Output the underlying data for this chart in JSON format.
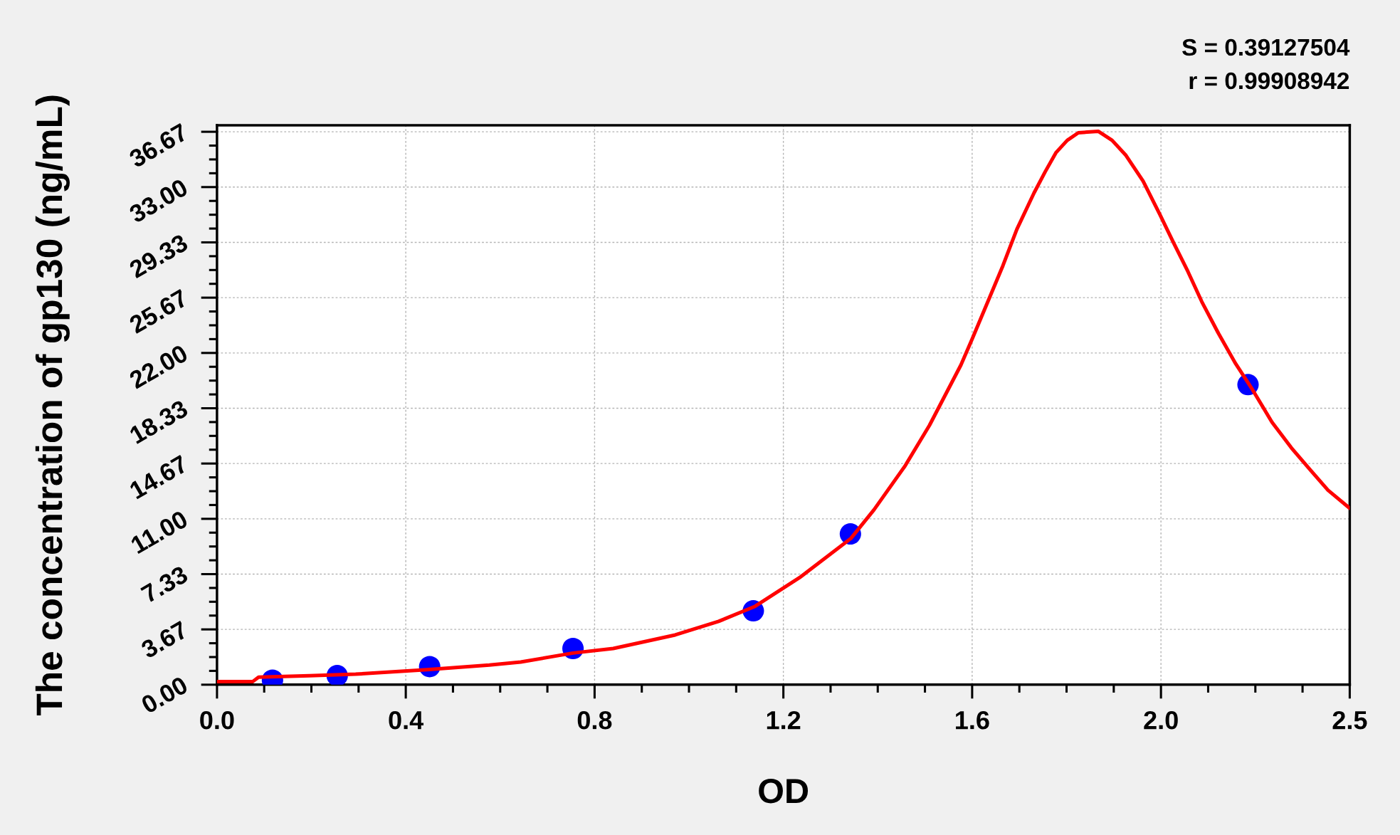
{
  "chart_data": {
    "type": "scatter",
    "xlabel": "OD",
    "ylabel": "The concentration of gp130 (ng/mL)",
    "annotations": [
      "S = 0.39127504",
      "r = 0.99908942"
    ],
    "xlim": [
      0,
      2.45
    ],
    "xticks": [
      {
        "value": 0,
        "label": "0.0"
      },
      {
        "value": 0.4083,
        "label": "0.4"
      },
      {
        "value": 0.8167,
        "label": "0.8"
      },
      {
        "value": 1.225,
        "label": "1.2"
      },
      {
        "value": 1.6333,
        "label": "1.6"
      },
      {
        "value": 2.0417,
        "label": "2.0"
      },
      {
        "value": 2.45,
        "label": "2.5"
      }
    ],
    "ylim": [
      0,
      37.1
    ],
    "yticks": [
      {
        "value": 0,
        "label": "0.00"
      },
      {
        "value": 3.667,
        "label": "3.67"
      },
      {
        "value": 7.333,
        "label": "7.33"
      },
      {
        "value": 11,
        "label": "11.00"
      },
      {
        "value": 14.667,
        "label": "14.67"
      },
      {
        "value": 18.333,
        "label": "18.33"
      },
      {
        "value": 22,
        "label": "22.00"
      },
      {
        "value": 25.667,
        "label": "25.67"
      },
      {
        "value": 29.333,
        "label": "29.33"
      },
      {
        "value": 33,
        "label": "33.00"
      },
      {
        "value": 36.667,
        "label": "36.67"
      }
    ],
    "grid": true,
    "series": [
      {
        "color": "#0000ff",
        "marker": "circle",
        "x": [
          0.12,
          0.26,
          0.46,
          0.77,
          1.16,
          1.37,
          2.23
        ],
        "values": [
          0.3,
          0.6,
          1.2,
          2.4,
          4.9,
          10.0,
          19.9
        ]
      },
      {
        "type": "line",
        "color": "#ff0000",
        "line_style": "solid",
        "x": [
          0,
          0.077,
          0.09,
          0.2,
          0.3,
          0.405,
          0.454,
          0.589,
          0.657,
          0.77,
          0.857,
          0.991,
          1.085,
          1.164,
          1.26,
          1.371,
          1.421,
          1.488,
          1.541,
          1.609,
          1.633,
          1.67,
          1.7,
          1.73,
          1.767,
          1.791,
          1.815,
          1.839,
          1.863,
          1.906,
          1.936,
          1.966,
          2.003,
          2.039,
          2.069,
          2.1,
          2.13,
          2.166,
          2.203,
          2.239,
          2.282,
          2.324,
          2.366,
          2.403,
          2.45
        ],
        "values": [
          0.2,
          0.2,
          0.5,
          0.6,
          0.7,
          0.9,
          1.0,
          1.3,
          1.5,
          2.1,
          2.4,
          3.3,
          4.2,
          5.2,
          7.1,
          9.7,
          11.6,
          14.5,
          17.2,
          21.2,
          22.9,
          25.6,
          27.8,
          30.2,
          32.6,
          34.0,
          35.3,
          36.1,
          36.6,
          36.7,
          36.1,
          35.1,
          33.4,
          31.2,
          29.3,
          27.4,
          25.4,
          23.3,
          21.3,
          19.6,
          17.4,
          15.7,
          14.2,
          12.9,
          11.7
        ]
      }
    ]
  }
}
